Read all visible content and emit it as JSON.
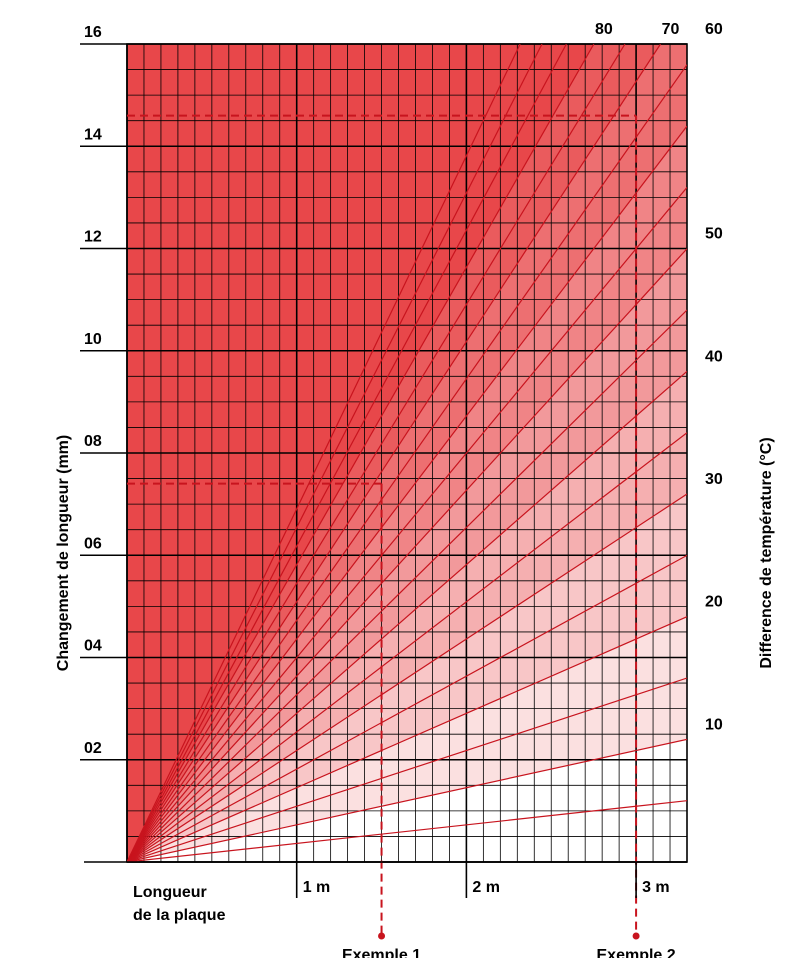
{
  "chart_data": {
    "type": "line",
    "title": "",
    "ylabel_left": "Changement de longueur (mm)",
    "ylabel_right": "Difference de température (°C)",
    "xlabel": "Longueur de la plaque",
    "xlabel_lines": [
      "Longueur",
      "de la plaque"
    ],
    "xlim": [
      0,
      3.3
    ],
    "ylim": [
      0,
      16
    ],
    "x_ticks": [
      {
        "value": 1,
        "label": "1 m"
      },
      {
        "value": 2,
        "label": "2 m"
      },
      {
        "value": 3,
        "label": "3 m"
      }
    ],
    "y_ticks_left": [
      {
        "value": 2,
        "label": "02"
      },
      {
        "value": 4,
        "label": "04"
      },
      {
        "value": 6,
        "label": "06"
      },
      {
        "value": 8,
        "label": "08"
      },
      {
        "value": 10,
        "label": "10"
      },
      {
        "value": 12,
        "label": "12"
      },
      {
        "value": 14,
        "label": "14"
      },
      {
        "value": 16,
        "label": "16"
      }
    ],
    "series_labels": [
      {
        "temperature": 10,
        "label": "10"
      },
      {
        "temperature": 20,
        "label": "20"
      },
      {
        "temperature": 30,
        "label": "30"
      },
      {
        "temperature": 40,
        "label": "40"
      },
      {
        "temperature": 50,
        "label": "50"
      },
      {
        "temperature": 60,
        "label": "60"
      },
      {
        "temperature": 70,
        "label": "70"
      },
      {
        "temperature": 80,
        "label": "80"
      }
    ],
    "mm_per_m_per_degC": 0.0727,
    "examples": [
      {
        "label": "Exemple 1",
        "x": 1.5,
        "y": 7.4
      },
      {
        "label": "Exemple 2",
        "x": 3.0,
        "y": 14.6
      }
    ],
    "grid": true,
    "colors": {
      "dark_fill": "#e8474a",
      "light_fill": "#ffffff",
      "series_line": "#c8141e",
      "grid_line": "#000000",
      "example_line": "#c8141e"
    }
  }
}
